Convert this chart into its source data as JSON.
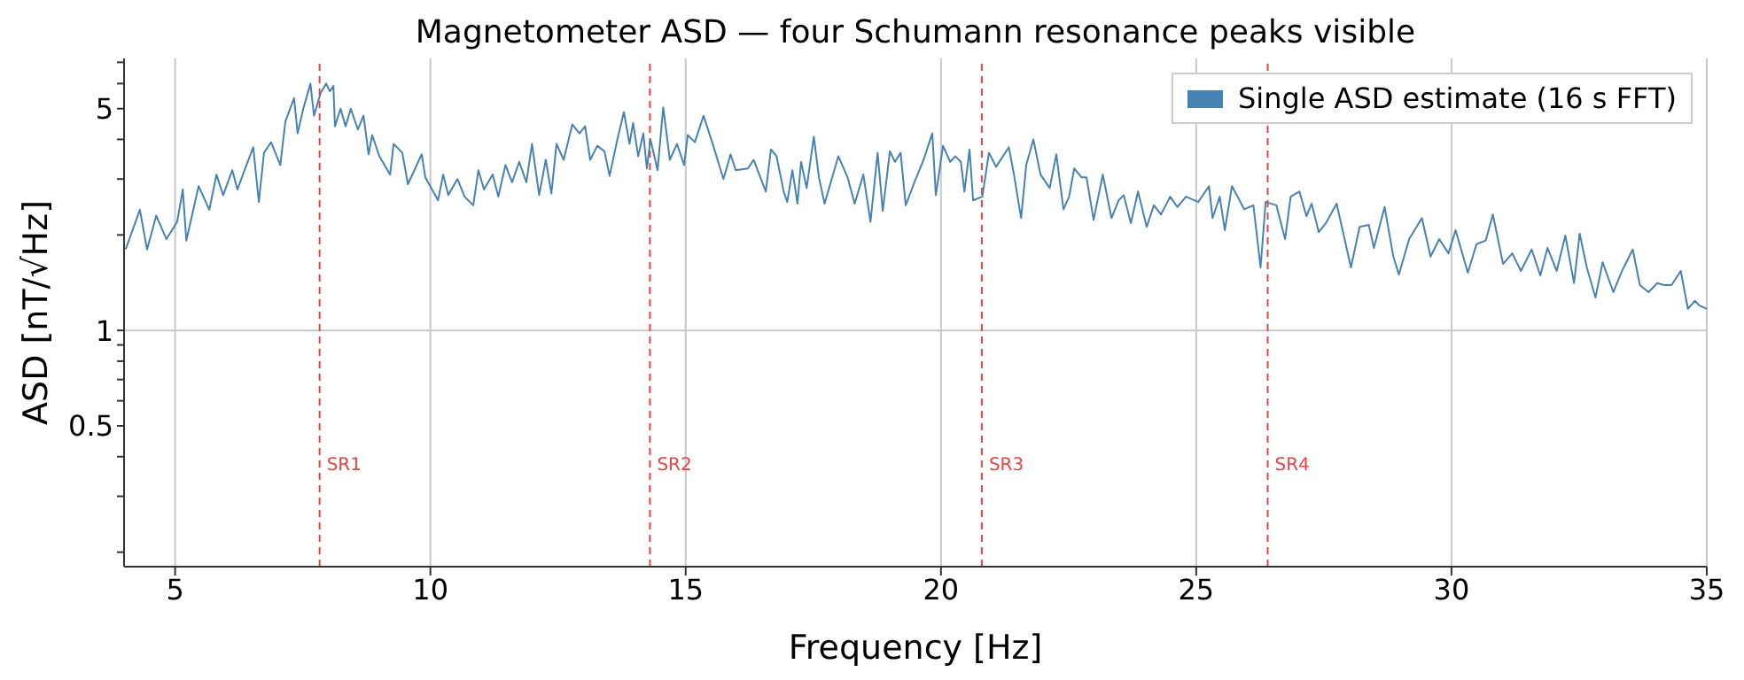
{
  "chart_data": {
    "type": "line",
    "title": "Magnetometer ASD — four Schumann resonance peaks visible",
    "xlabel": "Frequency [Hz]",
    "ylabel": "ASD [nT/√Hz]",
    "log": "y",
    "grid": true,
    "legend": "top right",
    "line_style": "solid",
    "marker": "none",
    "xlim": [
      4,
      35
    ],
    "xticks": [
      5,
      10,
      15,
      20,
      25,
      30,
      35
    ],
    "ylim": [
      0.18,
      7.2
    ],
    "yticks": [
      {
        "value": 0.2,
        "label": null
      },
      {
        "value": 0.3,
        "label": null
      },
      {
        "value": 0.4,
        "label": null
      },
      0.5,
      {
        "value": 0.6,
        "label": null
      },
      {
        "value": 0.7,
        "label": null
      },
      {
        "value": 0.8,
        "label": null
      },
      {
        "value": 0.9,
        "label": null
      },
      1,
      {
        "value": 2,
        "label": null
      },
      {
        "value": 3,
        "label": null
      },
      {
        "value": 4,
        "label": null
      },
      5,
      {
        "value": 6,
        "label": null
      },
      {
        "value": 7,
        "label": null
      }
    ],
    "ref_lines": [
      {
        "axis": "x",
        "value": 7.83,
        "label": "SR1",
        "color": "#f04040",
        "line_style": "dashed"
      },
      {
        "axis": "x",
        "value": 14.3,
        "label": "SR2",
        "color": "#f04040",
        "line_style": "dashed"
      },
      {
        "axis": "x",
        "value": 20.8,
        "label": "SR3",
        "color": "#f04040",
        "line_style": "dashed"
      },
      {
        "axis": "x",
        "value": 26.4,
        "label": "SR4",
        "color": "#f04040",
        "line_style": "dashed"
      }
    ],
    "series": [
      {
        "name": "Single ASD estimate (16 s FFT)",
        "color": "#4682b4",
        "x": [
          4.03,
          4.31,
          4.45,
          4.63,
          4.83,
          5.04,
          5.15,
          5.22,
          5.46,
          5.67,
          5.81,
          5.94,
          6.12,
          6.22,
          6.36,
          6.53,
          6.64,
          6.74,
          6.88,
          7.06,
          7.16,
          7.33,
          7.4,
          7.51,
          7.65,
          7.72,
          7.85,
          7.96,
          8.03,
          8.1,
          8.13,
          8.24,
          8.34,
          8.44,
          8.58,
          8.69,
          8.79,
          8.86,
          9.0,
          9.21,
          9.28,
          9.45,
          9.56,
          9.83,
          9.9,
          10.15,
          10.25,
          10.35,
          10.53,
          10.67,
          10.84,
          10.94,
          11.05,
          11.22,
          11.33,
          11.47,
          11.6,
          11.74,
          11.88,
          11.99,
          12.13,
          12.26,
          12.37,
          12.47,
          12.61,
          12.78,
          12.92,
          13.03,
          13.13,
          13.27,
          13.41,
          13.51,
          13.65,
          13.79,
          13.9,
          13.97,
          14.07,
          14.17,
          14.24,
          14.31,
          14.45,
          14.56,
          14.69,
          14.83,
          14.97,
          15.04,
          15.18,
          15.35,
          15.53,
          15.74,
          15.88,
          15.98,
          16.22,
          16.33,
          16.57,
          16.67,
          16.78,
          16.92,
          16.99,
          17.09,
          17.19,
          17.26,
          17.37,
          17.51,
          17.61,
          17.72,
          17.82,
          17.99,
          18.17,
          18.31,
          18.48,
          18.62,
          18.76,
          18.86,
          19.0,
          19.1,
          19.21,
          19.31,
          19.49,
          19.66,
          19.83,
          19.9,
          20.04,
          20.18,
          20.28,
          20.39,
          20.46,
          20.56,
          20.63,
          20.81,
          20.94,
          21.08,
          21.33,
          21.43,
          21.57,
          21.67,
          21.81,
          21.95,
          22.13,
          22.26,
          22.4,
          22.51,
          22.61,
          22.75,
          22.85,
          22.99,
          23.17,
          23.34,
          23.48,
          23.58,
          23.72,
          23.86,
          24.03,
          24.17,
          24.31,
          24.49,
          24.63,
          24.8,
          24.97,
          25.04,
          25.25,
          25.32,
          25.46,
          25.56,
          25.7,
          25.81,
          25.94,
          26.12,
          26.26,
          26.36,
          26.57,
          26.74,
          26.85,
          27.02,
          27.16,
          27.26,
          27.4,
          27.54,
          27.75,
          28.03,
          28.2,
          28.38,
          28.48,
          28.69,
          28.86,
          28.97,
          29.17,
          29.42,
          29.59,
          29.76,
          29.94,
          30.08,
          30.32,
          30.49,
          30.67,
          30.81,
          31.01,
          31.19,
          31.36,
          31.57,
          31.74,
          31.88,
          32.06,
          32.23,
          32.4,
          32.51,
          32.65,
          32.82,
          32.96,
          33.17,
          33.34,
          33.55,
          33.69,
          33.86,
          34.03,
          34.17,
          34.31,
          34.49,
          34.63,
          34.77,
          34.85,
          35.0
        ],
        "values": [
          1.8,
          2.4,
          1.8,
          2.3,
          1.94,
          2.2,
          2.78,
          1.92,
          2.85,
          2.4,
          3.1,
          2.67,
          3.2,
          2.78,
          3.2,
          3.78,
          2.54,
          3.63,
          3.92,
          3.32,
          4.56,
          5.4,
          4.18,
          5.0,
          6.0,
          4.75,
          5.6,
          6.0,
          5.67,
          5.9,
          4.4,
          5.0,
          4.4,
          5.0,
          4.3,
          4.75,
          3.59,
          4.13,
          3.54,
          3.1,
          3.87,
          3.63,
          2.89,
          3.59,
          3.04,
          2.57,
          3.1,
          2.67,
          3.0,
          2.64,
          2.48,
          3.2,
          2.78,
          3.1,
          2.64,
          3.32,
          2.93,
          3.4,
          2.93,
          3.87,
          2.67,
          3.45,
          2.7,
          3.87,
          3.45,
          4.46,
          4.18,
          4.4,
          3.45,
          3.82,
          3.67,
          3.07,
          3.92,
          4.88,
          3.87,
          4.51,
          3.54,
          4.18,
          3.24,
          4.0,
          3.2,
          5.05,
          3.45,
          3.87,
          3.32,
          4.13,
          3.92,
          4.75,
          3.87,
          3.0,
          3.59,
          3.2,
          3.24,
          3.45,
          2.74,
          3.72,
          3.54,
          2.74,
          2.54,
          3.2,
          2.51,
          3.4,
          2.81,
          4.08,
          3.04,
          2.51,
          2.85,
          3.54,
          3.04,
          2.51,
          3.1,
          2.2,
          3.63,
          2.38,
          3.67,
          3.4,
          3.63,
          2.48,
          2.96,
          3.45,
          4.18,
          2.67,
          3.82,
          3.4,
          3.54,
          3.4,
          2.74,
          3.72,
          2.57,
          2.64,
          3.63,
          3.28,
          3.78,
          3.1,
          2.26,
          3.32,
          4.0,
          3.1,
          2.81,
          3.59,
          2.41,
          2.64,
          3.24,
          3.04,
          3.04,
          2.23,
          3.1,
          2.26,
          2.57,
          2.67,
          2.18,
          2.74,
          2.12,
          2.48,
          2.32,
          2.64,
          2.45,
          2.64,
          2.57,
          2.54,
          2.85,
          2.26,
          2.64,
          2.07,
          2.85,
          2.64,
          2.41,
          2.48,
          1.58,
          2.54,
          2.48,
          1.94,
          2.64,
          2.74,
          2.29,
          2.51,
          2.04,
          2.18,
          2.51,
          1.58,
          2.12,
          2.15,
          1.82,
          2.45,
          1.71,
          1.5,
          1.94,
          2.26,
          1.71,
          1.94,
          1.75,
          2.07,
          1.52,
          1.87,
          1.92,
          2.32,
          1.62,
          1.75,
          1.54,
          1.8,
          1.49,
          1.82,
          1.54,
          1.99,
          1.41,
          2.02,
          1.58,
          1.27,
          1.64,
          1.32,
          1.54,
          1.8,
          1.39,
          1.32,
          1.41,
          1.39,
          1.39,
          1.54,
          1.17,
          1.24,
          1.2,
          1.17
        ]
      }
    ]
  }
}
